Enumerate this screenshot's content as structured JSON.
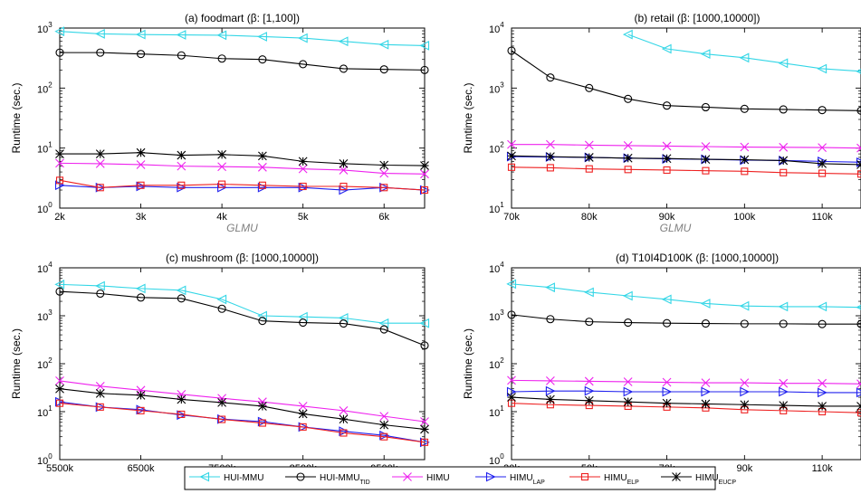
{
  "chart_data": [
    {
      "type": "line",
      "title": "(a) foodmart (β: [1,100])",
      "xlabel": "GLMU",
      "ylabel": "Runtime (sec.)",
      "x_scale": "linear",
      "y_scale": "log",
      "xlim": [
        2000,
        6500
      ],
      "ylim": [
        1,
        1000
      ],
      "x_ticks": [
        {
          "v": 2000,
          "label": "2k"
        },
        {
          "v": 3000,
          "label": "3k"
        },
        {
          "v": 4000,
          "label": "4k"
        },
        {
          "v": 5000,
          "label": "5k"
        },
        {
          "v": 6000,
          "label": "6k"
        }
      ],
      "y_ticks": [
        {
          "v": 1,
          "base": "10",
          "exp": "0"
        },
        {
          "v": 10,
          "base": "10",
          "exp": "1"
        },
        {
          "v": 100,
          "base": "10",
          "exp": "2"
        },
        {
          "v": 1000,
          "base": "10",
          "exp": "3"
        }
      ],
      "x": [
        2000,
        2500,
        3000,
        3500,
        4000,
        4500,
        5000,
        5500,
        6000,
        6500
      ],
      "series": [
        {
          "key": "hui_mmu",
          "values": [
            880,
            800,
            780,
            770,
            760,
            720,
            680,
            600,
            530,
            510
          ]
        },
        {
          "key": "hui_mmu_tid",
          "values": [
            390,
            390,
            370,
            350,
            310,
            300,
            250,
            210,
            205,
            200
          ]
        },
        {
          "key": "himu",
          "values": [
            5.6,
            5.5,
            5.3,
            5.0,
            4.9,
            4.8,
            4.5,
            4.3,
            3.8,
            3.7
          ]
        },
        {
          "key": "himu_lap",
          "values": [
            2.4,
            2.2,
            2.3,
            2.2,
            2.2,
            2.2,
            2.2,
            2.0,
            2.2,
            2.0
          ]
        },
        {
          "key": "himu_elp",
          "values": [
            2.9,
            2.2,
            2.4,
            2.4,
            2.5,
            2.4,
            2.3,
            2.3,
            2.2,
            2.0
          ]
        },
        {
          "key": "himu_eucp",
          "values": [
            8.0,
            8.0,
            8.4,
            7.6,
            7.8,
            7.4,
            6.0,
            5.5,
            5.2,
            5.1
          ]
        }
      ]
    },
    {
      "type": "line",
      "title": "(b) retail (β: [1000,10000])",
      "xlabel": "GLMU",
      "ylabel": "Runtime (sec.)",
      "x_scale": "linear",
      "y_scale": "log",
      "xlim": [
        70000,
        115000
      ],
      "ylim": [
        10,
        10000
      ],
      "x_ticks": [
        {
          "v": 70000,
          "label": "70k"
        },
        {
          "v": 80000,
          "label": "80k"
        },
        {
          "v": 90000,
          "label": "90k"
        },
        {
          "v": 100000,
          "label": "100k"
        },
        {
          "v": 110000,
          "label": "110k"
        }
      ],
      "y_ticks": [
        {
          "v": 10,
          "base": "10",
          "exp": "1"
        },
        {
          "v": 100,
          "base": "10",
          "exp": "2"
        },
        {
          "v": 1000,
          "base": "10",
          "exp": "3"
        },
        {
          "v": 10000,
          "base": "10",
          "exp": "4"
        }
      ],
      "x": [
        70000,
        75000,
        80000,
        85000,
        90000,
        95000,
        100000,
        105000,
        110000,
        115000
      ],
      "series": [
        {
          "key": "hui_mmu",
          "values": [
            null,
            null,
            null,
            7800,
            4500,
            3700,
            3200,
            2600,
            2100,
            1900
          ]
        },
        {
          "key": "hui_mmu_tid",
          "values": [
            4200,
            1500,
            1000,
            660,
            510,
            480,
            450,
            440,
            430,
            420
          ]
        },
        {
          "key": "himu",
          "values": [
            115,
            115,
            112,
            110,
            108,
            106,
            104,
            103,
            102,
            100
          ]
        },
        {
          "key": "himu_lap",
          "values": [
            72,
            71,
            70,
            68,
            66,
            65,
            63,
            62,
            60,
            58
          ]
        },
        {
          "key": "himu_elp",
          "values": [
            48,
            47,
            45,
            44,
            43,
            42,
            41,
            39,
            38,
            37
          ]
        },
        {
          "key": "himu_eucp",
          "values": [
            74,
            72,
            70,
            68,
            67,
            65,
            64,
            62,
            55,
            53
          ]
        }
      ]
    },
    {
      "type": "line",
      "title": "(c) mushroom (β: [1000,10000])",
      "xlabel": "GLMU",
      "ylabel": "Runtime (sec.)",
      "x_scale": "linear",
      "y_scale": "log",
      "xlim": [
        5500000,
        10000000
      ],
      "ylim": [
        1,
        10000
      ],
      "x_ticks": [
        {
          "v": 5500000,
          "label": "5500k"
        },
        {
          "v": 6500000,
          "label": "6500k"
        },
        {
          "v": 7500000,
          "label": "7500k"
        },
        {
          "v": 8500000,
          "label": "8500k"
        },
        {
          "v": 9500000,
          "label": "9500k"
        }
      ],
      "y_ticks": [
        {
          "v": 1,
          "base": "10",
          "exp": "0"
        },
        {
          "v": 10,
          "base": "10",
          "exp": "1"
        },
        {
          "v": 100,
          "base": "10",
          "exp": "2"
        },
        {
          "v": 1000,
          "base": "10",
          "exp": "3"
        },
        {
          "v": 10000,
          "base": "10",
          "exp": "4"
        }
      ],
      "x": [
        5500000,
        6000000,
        6500000,
        7000000,
        7500000,
        8000000,
        8500000,
        9000000,
        9500000,
        10000000
      ],
      "series": [
        {
          "key": "hui_mmu",
          "values": [
            4500,
            4200,
            3700,
            3400,
            2200,
            1000,
            950,
            900,
            700,
            700
          ]
        },
        {
          "key": "hui_mmu_tid",
          "values": [
            3200,
            2900,
            2400,
            2300,
            1400,
            780,
            720,
            690,
            520,
            240
          ]
        },
        {
          "key": "himu",
          "values": [
            44,
            34,
            28,
            23,
            19,
            16,
            13,
            10.5,
            8,
            6.2
          ]
        },
        {
          "key": "himu_lap",
          "values": [
            16,
            12.5,
            11,
            8.5,
            7,
            6.2,
            4.8,
            3.9,
            3.2,
            2.3
          ]
        },
        {
          "key": "himu_elp",
          "values": [
            15,
            12.5,
            10.5,
            8.8,
            6.9,
            5.8,
            4.8,
            3.6,
            3.0,
            2.3
          ]
        },
        {
          "key": "himu_eucp",
          "values": [
            30,
            24,
            22,
            18,
            15.5,
            13,
            9,
            7,
            5.3,
            4.3
          ]
        }
      ]
    },
    {
      "type": "line",
      "title": "(d) T10I4D100K (β: [1000,10000])",
      "xlabel": "GLMU",
      "ylabel": "Runtime (sec.)",
      "x_scale": "linear",
      "y_scale": "log",
      "xlim": [
        30000,
        120000
      ],
      "ylim": [
        1,
        10000
      ],
      "x_ticks": [
        {
          "v": 30000,
          "label": "30k"
        },
        {
          "v": 50000,
          "label": "50k"
        },
        {
          "v": 70000,
          "label": "70k"
        },
        {
          "v": 90000,
          "label": "90k"
        },
        {
          "v": 110000,
          "label": "110k"
        }
      ],
      "y_ticks": [
        {
          "v": 1,
          "base": "10",
          "exp": "0"
        },
        {
          "v": 10,
          "base": "10",
          "exp": "1"
        },
        {
          "v": 100,
          "base": "10",
          "exp": "2"
        },
        {
          "v": 1000,
          "base": "10",
          "exp": "3"
        },
        {
          "v": 10000,
          "base": "10",
          "exp": "4"
        }
      ],
      "x": [
        30000,
        40000,
        50000,
        60000,
        70000,
        80000,
        90000,
        100000,
        110000,
        120000
      ],
      "series": [
        {
          "key": "hui_mmu",
          "values": [
            4600,
            3900,
            3100,
            2600,
            2200,
            1800,
            1600,
            1550,
            1550,
            1500
          ]
        },
        {
          "key": "hui_mmu_tid",
          "values": [
            1050,
            850,
            750,
            720,
            700,
            690,
            680,
            680,
            670,
            670
          ]
        },
        {
          "key": "himu",
          "values": [
            45,
            44,
            43,
            42,
            41,
            40,
            40,
            39,
            39,
            38
          ]
        },
        {
          "key": "himu_lap",
          "values": [
            26,
            27,
            27,
            26,
            26,
            26,
            26,
            26,
            25,
            25
          ]
        },
        {
          "key": "himu_elp",
          "values": [
            15,
            14,
            13.5,
            13,
            12.5,
            12,
            11,
            10.5,
            10,
            9.5
          ]
        },
        {
          "key": "himu_eucp",
          "values": [
            20,
            18,
            17,
            16,
            15,
            14.5,
            14,
            13.5,
            13,
            13
          ]
        }
      ]
    }
  ],
  "legend": [
    {
      "key": "hui_mmu",
      "name": "HUI-MMU",
      "sub": "",
      "color": "#33d6e6",
      "marker": "tri-left"
    },
    {
      "key": "hui_mmu_tid",
      "name": "HUI-MMU",
      "sub": "TID",
      "color": "#000000",
      "marker": "circle"
    },
    {
      "key": "himu",
      "name": "HIMU",
      "sub": "",
      "color": "#ee22ee",
      "marker": "x"
    },
    {
      "key": "himu_lap",
      "name": "HIMU",
      "sub": "LAP",
      "color": "#2020ee",
      "marker": "tri-right"
    },
    {
      "key": "himu_elp",
      "name": "HIMU",
      "sub": "ELP",
      "color": "#ee2020",
      "marker": "square"
    },
    {
      "key": "himu_eucp",
      "name": "HIMU",
      "sub": "EUCP",
      "color": "#000000",
      "marker": "star"
    }
  ]
}
